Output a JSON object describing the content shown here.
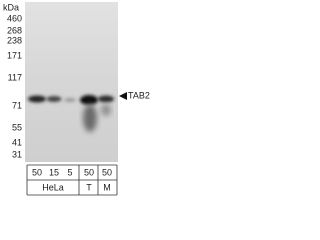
{
  "blot": {
    "marker_unit": "kDa",
    "markers": [
      "460",
      "268",
      "238",
      "171",
      "117",
      "71",
      "55",
      "41",
      "31"
    ],
    "band_label": "TAB2",
    "lanes": [
      "50",
      "15",
      "5",
      "50",
      "50"
    ],
    "groups": [
      "HeLa",
      "T",
      "M"
    ]
  }
}
